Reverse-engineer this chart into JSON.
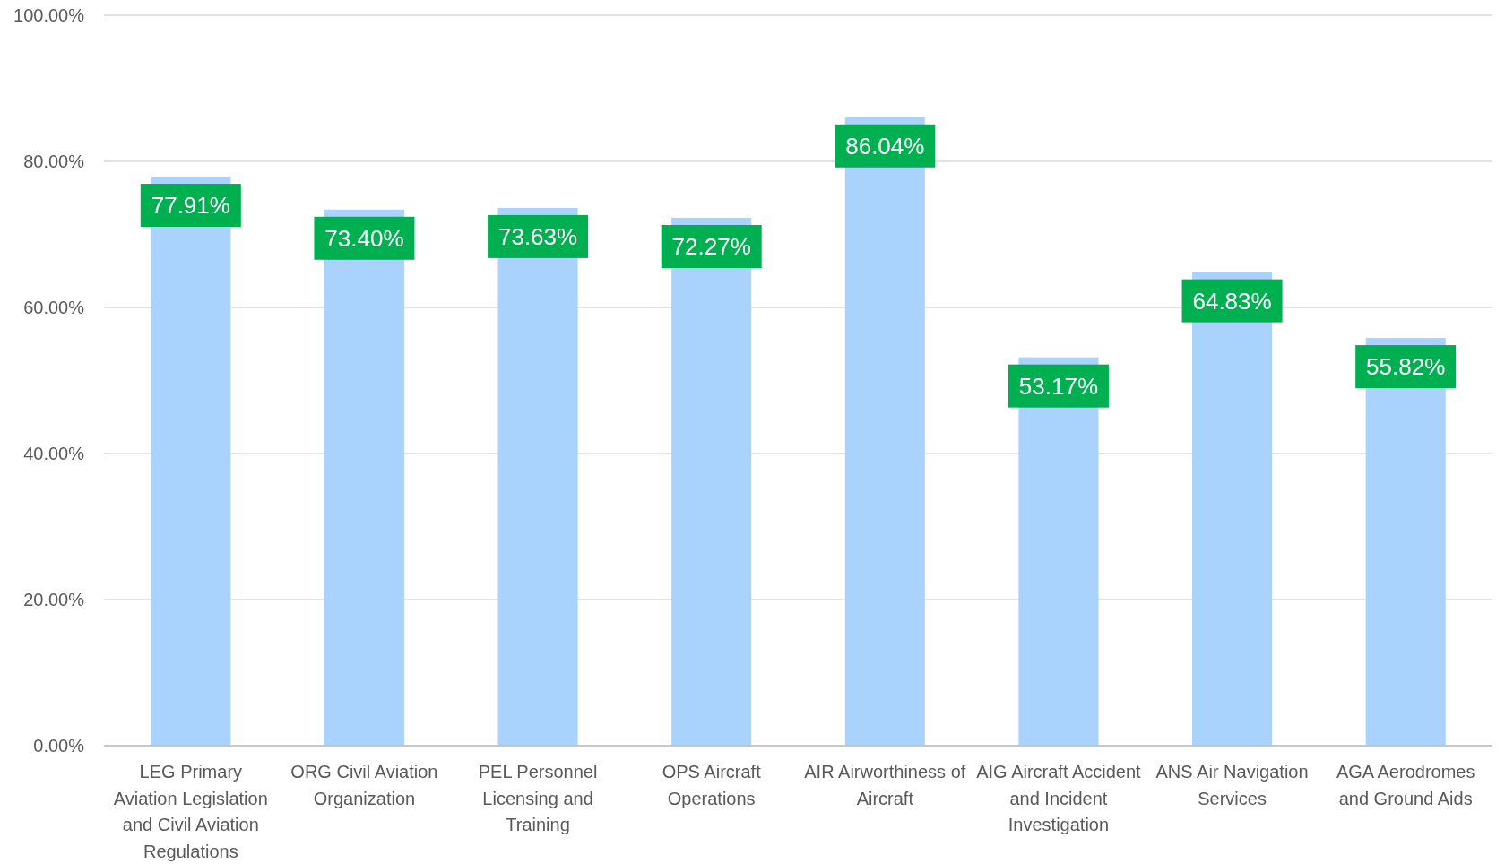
{
  "chart_data": {
    "type": "bar",
    "categories": [
      "LEG Primary Aviation Legislation and Civil Aviation Regulations",
      "ORG Civil Aviation Organization",
      "PEL Personnel Licensing and Training",
      "OPS Aircraft Operations",
      "AIR Airworthiness of Aircraft",
      "AIG Aircraft Accident and Incident Investigation",
      "ANS Air Navigation Services",
      "AGA Aerodromes and Ground Aids"
    ],
    "values": [
      77.91,
      73.4,
      73.63,
      72.27,
      86.04,
      53.17,
      64.83,
      55.82
    ],
    "value_labels": [
      "77.91%",
      "73.40%",
      "73.63%",
      "72.27%",
      "86.04%",
      "53.17%",
      "64.83%",
      "55.82%"
    ],
    "color": "#a9d3fd",
    "ylim": [
      0,
      100
    ],
    "yticks": [
      {
        "value": 0,
        "label": "0.00%"
      },
      {
        "value": 20,
        "label": "20.00%"
      },
      {
        "value": 40,
        "label": "40.00%"
      },
      {
        "value": 60,
        "label": "60.00%"
      },
      {
        "value": 80,
        "label": "80.00%"
      },
      {
        "value": 100,
        "label": "100.00%"
      }
    ],
    "grid": "y"
  }
}
